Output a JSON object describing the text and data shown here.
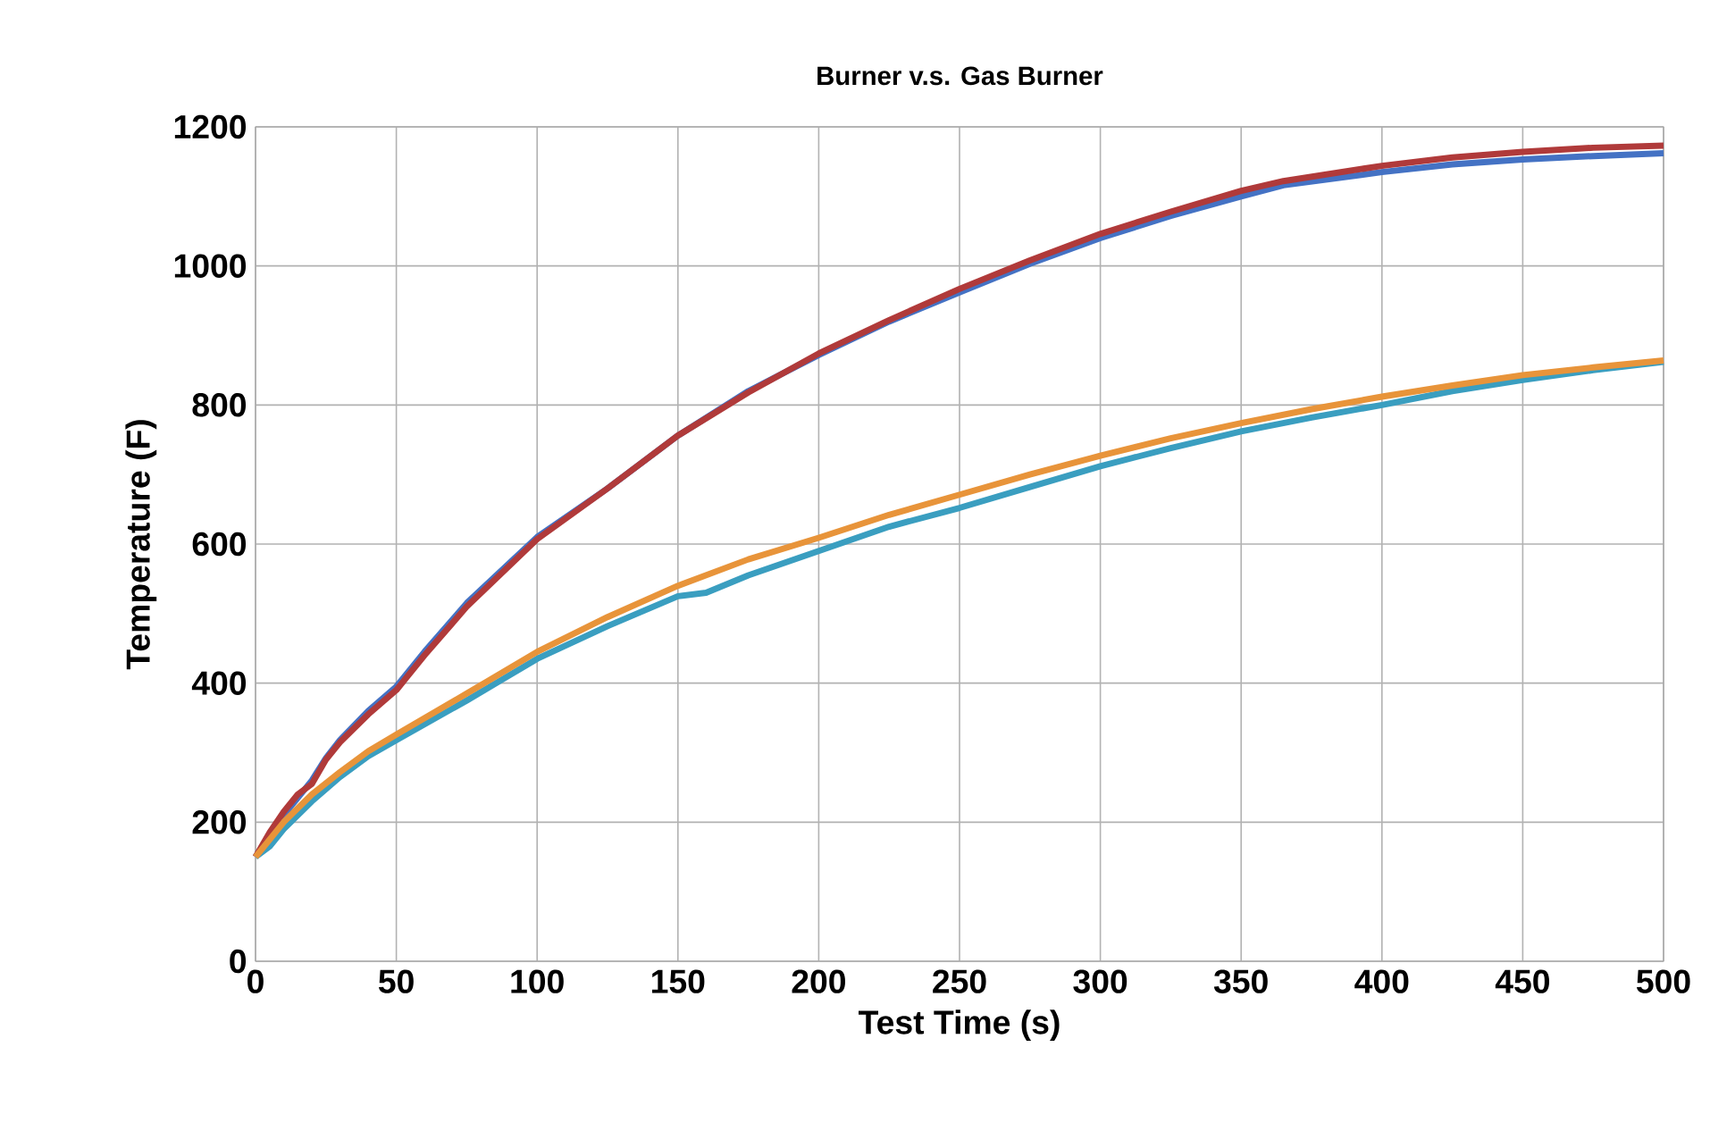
{
  "chart_data": {
    "type": "line",
    "title": "Burner v.s. Gas Burner",
    "xlabel": "Test Time (s)",
    "ylabel": "Temperature (F)",
    "xlim": [
      0,
      500
    ],
    "ylim": [
      0,
      1200
    ],
    "xticks": [
      0,
      50,
      100,
      150,
      200,
      250,
      300,
      350,
      400,
      450,
      500
    ],
    "yticks": [
      0,
      200,
      400,
      600,
      800,
      1000,
      1200
    ],
    "grid": true,
    "marker": "none",
    "line_style": "solid",
    "series": [
      {
        "color": "#4472c4",
        "x": [
          0,
          5,
          10,
          15,
          20,
          25,
          30,
          40,
          50,
          60,
          75,
          100,
          125,
          150,
          175,
          200,
          225,
          250,
          275,
          300,
          325,
          350,
          365,
          400,
          425,
          450,
          475,
          500
        ],
        "values": [
          150,
          180,
          210,
          235,
          260,
          292,
          318,
          360,
          395,
          445,
          515,
          610,
          680,
          756,
          820,
          872,
          920,
          962,
          1003,
          1040,
          1072,
          1100,
          1116,
          1135,
          1146,
          1153,
          1158,
          1162
        ]
      },
      {
        "color": "#b03a3a",
        "x": [
          0,
          5,
          10,
          15,
          20,
          25,
          30,
          40,
          50,
          60,
          75,
          100,
          125,
          150,
          175,
          200,
          225,
          250,
          275,
          300,
          325,
          350,
          365,
          400,
          425,
          450,
          475,
          500
        ],
        "values": [
          150,
          185,
          215,
          240,
          255,
          290,
          315,
          355,
          390,
          440,
          510,
          607,
          680,
          756,
          818,
          874,
          922,
          967,
          1008,
          1046,
          1078,
          1108,
          1122,
          1144,
          1156,
          1164,
          1170,
          1173
        ]
      },
      {
        "color": "#3a9ec0",
        "x": [
          0,
          5,
          10,
          20,
          30,
          40,
          50,
          75,
          100,
          125,
          150,
          160,
          175,
          200,
          225,
          250,
          275,
          300,
          325,
          350,
          375,
          400,
          425,
          450,
          475,
          500
        ],
        "values": [
          150,
          165,
          190,
          230,
          265,
          295,
          318,
          375,
          435,
          482,
          525,
          530,
          555,
          590,
          625,
          652,
          682,
          712,
          738,
          762,
          782,
          800,
          820,
          836,
          850,
          862
        ]
      },
      {
        "color": "#e8943a",
        "x": [
          0,
          5,
          10,
          20,
          30,
          40,
          50,
          75,
          100,
          125,
          150,
          175,
          200,
          225,
          250,
          275,
          300,
          325,
          350,
          375,
          400,
          425,
          450,
          475,
          500
        ],
        "values": [
          150,
          175,
          200,
          240,
          272,
          302,
          326,
          385,
          445,
          495,
          540,
          578,
          609,
          642,
          671,
          700,
          727,
          752,
          774,
          794,
          812,
          828,
          843,
          854,
          864
        ]
      }
    ]
  }
}
